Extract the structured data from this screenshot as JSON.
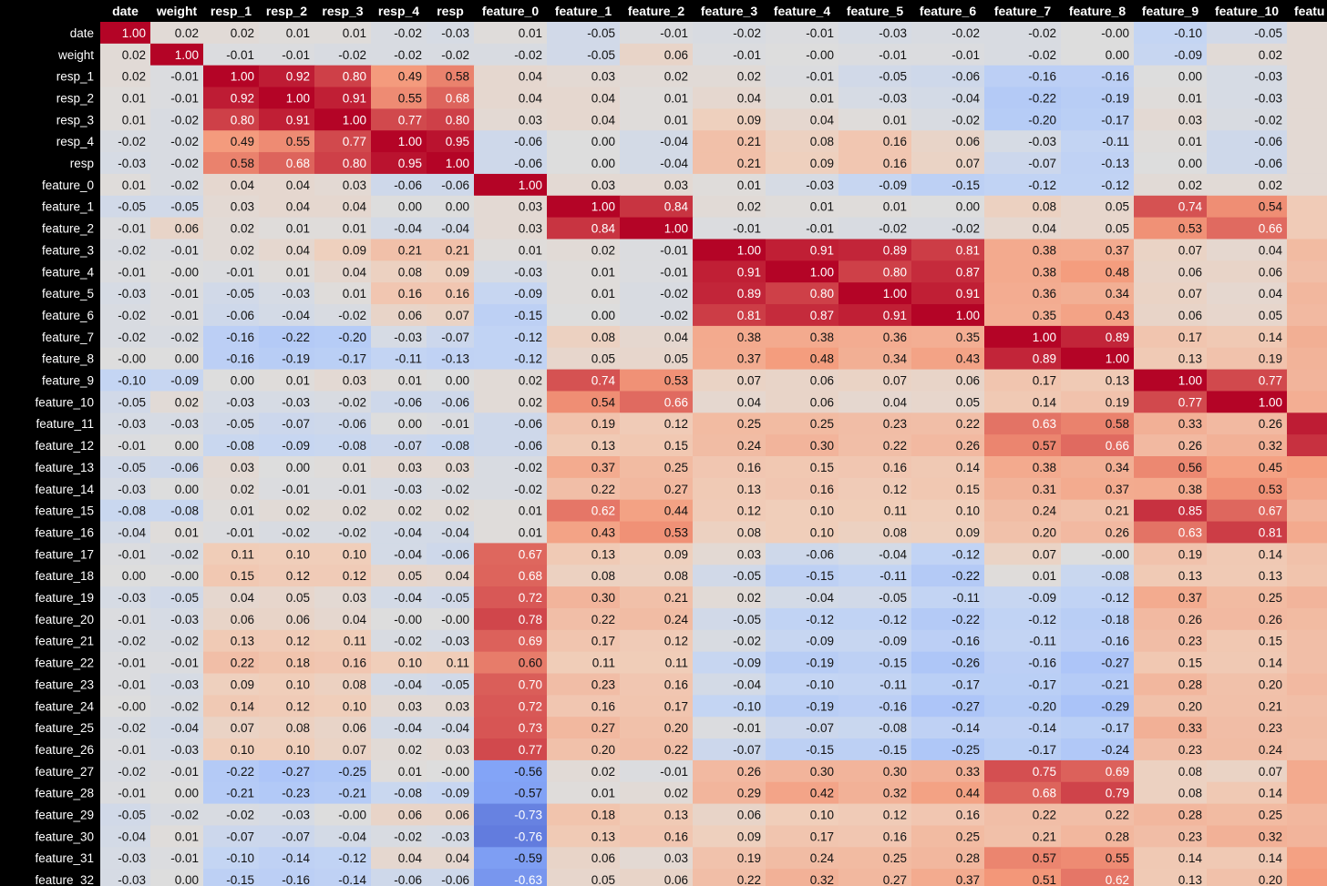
{
  "chart_data": {
    "type": "heatmap",
    "title": "",
    "colormap": "coolwarm",
    "value_range": [
      -1,
      1
    ],
    "columns": [
      "date",
      "weight",
      "resp_1",
      "resp_2",
      "resp_3",
      "resp_4",
      "resp",
      "feature_0",
      "feature_1",
      "feature_2",
      "feature_3",
      "feature_4",
      "feature_5",
      "feature_6",
      "feature_7",
      "feature_8",
      "feature_9",
      "feature_10",
      "featu"
    ],
    "rows": [
      "date",
      "weight",
      "resp_1",
      "resp_2",
      "resp_3",
      "resp_4",
      "resp",
      "feature_0",
      "feature_1",
      "feature_2",
      "feature_3",
      "feature_4",
      "feature_5",
      "feature_6",
      "feature_7",
      "feature_8",
      "feature_9",
      "feature_10",
      "feature_11",
      "feature_12",
      "feature_13",
      "feature_14",
      "feature_15",
      "feature_16",
      "feature_17",
      "feature_18",
      "feature_19",
      "feature_20",
      "feature_21",
      "feature_22",
      "feature_23",
      "feature_24",
      "feature_25",
      "feature_26",
      "feature_27",
      "feature_28",
      "feature_29",
      "feature_30",
      "feature_31",
      "feature_32"
    ],
    "values": [
      [
        "1.00",
        "0.02",
        "0.02",
        "0.01",
        "0.01",
        "-0.02",
        "-0.03",
        "0.01",
        "-0.05",
        "-0.01",
        "-0.02",
        "-0.01",
        "-0.03",
        "-0.02",
        "-0.02",
        "-0.00",
        "-0.10",
        "-0.05"
      ],
      [
        "0.02",
        "1.00",
        "-0.01",
        "-0.01",
        "-0.02",
        "-0.02",
        "-0.02",
        "-0.02",
        "-0.05",
        "0.06",
        "-0.01",
        "-0.00",
        "-0.01",
        "-0.01",
        "-0.02",
        "0.00",
        "-0.09",
        "0.02"
      ],
      [
        "0.02",
        "-0.01",
        "1.00",
        "0.92",
        "0.80",
        "0.49",
        "0.58",
        "0.04",
        "0.03",
        "0.02",
        "0.02",
        "-0.01",
        "-0.05",
        "-0.06",
        "-0.16",
        "-0.16",
        "0.00",
        "-0.03"
      ],
      [
        "0.01",
        "-0.01",
        "0.92",
        "1.00",
        "0.91",
        "0.55",
        "0.68",
        "0.04",
        "0.04",
        "0.01",
        "0.04",
        "0.01",
        "-0.03",
        "-0.04",
        "-0.22",
        "-0.19",
        "0.01",
        "-0.03"
      ],
      [
        "0.01",
        "-0.02",
        "0.80",
        "0.91",
        "1.00",
        "0.77",
        "0.80",
        "0.03",
        "0.04",
        "0.01",
        "0.09",
        "0.04",
        "0.01",
        "-0.02",
        "-0.20",
        "-0.17",
        "0.03",
        "-0.02"
      ],
      [
        "-0.02",
        "-0.02",
        "0.49",
        "0.55",
        "0.77",
        "1.00",
        "0.95",
        "-0.06",
        "0.00",
        "-0.04",
        "0.21",
        "0.08",
        "0.16",
        "0.06",
        "-0.03",
        "-0.11",
        "0.01",
        "-0.06"
      ],
      [
        "-0.03",
        "-0.02",
        "0.58",
        "0.68",
        "0.80",
        "0.95",
        "1.00",
        "-0.06",
        "0.00",
        "-0.04",
        "0.21",
        "0.09",
        "0.16",
        "0.07",
        "-0.07",
        "-0.13",
        "0.00",
        "-0.06"
      ],
      [
        "0.01",
        "-0.02",
        "0.04",
        "0.04",
        "0.03",
        "-0.06",
        "-0.06",
        "1.00",
        "0.03",
        "0.03",
        "0.01",
        "-0.03",
        "-0.09",
        "-0.15",
        "-0.12",
        "-0.12",
        "0.02",
        "0.02"
      ],
      [
        "-0.05",
        "-0.05",
        "0.03",
        "0.04",
        "0.04",
        "0.00",
        "0.00",
        "0.03",
        "1.00",
        "0.84",
        "0.02",
        "0.01",
        "0.01",
        "0.00",
        "0.08",
        "0.05",
        "0.74",
        "0.54"
      ],
      [
        "-0.01",
        "0.06",
        "0.02",
        "0.01",
        "0.01",
        "-0.04",
        "-0.04",
        "0.03",
        "0.84",
        "1.00",
        "-0.01",
        "-0.01",
        "-0.02",
        "-0.02",
        "0.04",
        "0.05",
        "0.53",
        "0.66"
      ],
      [
        "-0.02",
        "-0.01",
        "0.02",
        "0.04",
        "0.09",
        "0.21",
        "0.21",
        "0.01",
        "0.02",
        "-0.01",
        "1.00",
        "0.91",
        "0.89",
        "0.81",
        "0.38",
        "0.37",
        "0.07",
        "0.04"
      ],
      [
        "-0.01",
        "-0.00",
        "-0.01",
        "0.01",
        "0.04",
        "0.08",
        "0.09",
        "-0.03",
        "0.01",
        "-0.01",
        "0.91",
        "1.00",
        "0.80",
        "0.87",
        "0.38",
        "0.48",
        "0.06",
        "0.06"
      ],
      [
        "-0.03",
        "-0.01",
        "-0.05",
        "-0.03",
        "0.01",
        "0.16",
        "0.16",
        "-0.09",
        "0.01",
        "-0.02",
        "0.89",
        "0.80",
        "1.00",
        "0.91",
        "0.36",
        "0.34",
        "0.07",
        "0.04"
      ],
      [
        "-0.02",
        "-0.01",
        "-0.06",
        "-0.04",
        "-0.02",
        "0.06",
        "0.07",
        "-0.15",
        "0.00",
        "-0.02",
        "0.81",
        "0.87",
        "0.91",
        "1.00",
        "0.35",
        "0.43",
        "0.06",
        "0.05"
      ],
      [
        "-0.02",
        "-0.02",
        "-0.16",
        "-0.22",
        "-0.20",
        "-0.03",
        "-0.07",
        "-0.12",
        "0.08",
        "0.04",
        "0.38",
        "0.38",
        "0.36",
        "0.35",
        "1.00",
        "0.89",
        "0.17",
        "0.14"
      ],
      [
        "-0.00",
        "0.00",
        "-0.16",
        "-0.19",
        "-0.17",
        "-0.11",
        "-0.13",
        "-0.12",
        "0.05",
        "0.05",
        "0.37",
        "0.48",
        "0.34",
        "0.43",
        "0.89",
        "1.00",
        "0.13",
        "0.19"
      ],
      [
        "-0.10",
        "-0.09",
        "0.00",
        "0.01",
        "0.03",
        "0.01",
        "0.00",
        "0.02",
        "0.74",
        "0.53",
        "0.07",
        "0.06",
        "0.07",
        "0.06",
        "0.17",
        "0.13",
        "1.00",
        "0.77"
      ],
      [
        "-0.05",
        "0.02",
        "-0.03",
        "-0.03",
        "-0.02",
        "-0.06",
        "-0.06",
        "0.02",
        "0.54",
        "0.66",
        "0.04",
        "0.06",
        "0.04",
        "0.05",
        "0.14",
        "0.19",
        "0.77",
        "1.00"
      ],
      [
        "-0.03",
        "-0.03",
        "-0.05",
        "-0.07",
        "-0.06",
        "0.00",
        "-0.01",
        "-0.06",
        "0.19",
        "0.12",
        "0.25",
        "0.25",
        "0.23",
        "0.22",
        "0.63",
        "0.58",
        "0.33",
        "0.26"
      ],
      [
        "-0.01",
        "0.00",
        "-0.08",
        "-0.09",
        "-0.08",
        "-0.07",
        "-0.08",
        "-0.06",
        "0.13",
        "0.15",
        "0.24",
        "0.30",
        "0.22",
        "0.26",
        "0.57",
        "0.66",
        "0.26",
        "0.32"
      ],
      [
        "-0.05",
        "-0.06",
        "0.03",
        "0.00",
        "0.01",
        "0.03",
        "0.03",
        "-0.02",
        "0.37",
        "0.25",
        "0.16",
        "0.15",
        "0.16",
        "0.14",
        "0.38",
        "0.34",
        "0.56",
        "0.45"
      ],
      [
        "-0.03",
        "0.00",
        "0.02",
        "-0.01",
        "-0.01",
        "-0.03",
        "-0.02",
        "-0.02",
        "0.22",
        "0.27",
        "0.13",
        "0.16",
        "0.12",
        "0.15",
        "0.31",
        "0.37",
        "0.38",
        "0.53"
      ],
      [
        "-0.08",
        "-0.08",
        "0.01",
        "0.02",
        "0.02",
        "0.02",
        "0.02",
        "0.01",
        "0.62",
        "0.44",
        "0.12",
        "0.10",
        "0.11",
        "0.10",
        "0.24",
        "0.21",
        "0.85",
        "0.67"
      ],
      [
        "-0.04",
        "0.01",
        "-0.01",
        "-0.02",
        "-0.02",
        "-0.04",
        "-0.04",
        "0.01",
        "0.43",
        "0.53",
        "0.08",
        "0.10",
        "0.08",
        "0.09",
        "0.20",
        "0.26",
        "0.63",
        "0.81"
      ],
      [
        "-0.01",
        "-0.02",
        "0.11",
        "0.10",
        "0.10",
        "-0.04",
        "-0.06",
        "0.67",
        "0.13",
        "0.09",
        "0.03",
        "-0.06",
        "-0.04",
        "-0.12",
        "0.07",
        "-0.00",
        "0.19",
        "0.14"
      ],
      [
        "0.00",
        "-0.00",
        "0.15",
        "0.12",
        "0.12",
        "0.05",
        "0.04",
        "0.68",
        "0.08",
        "0.08",
        "-0.05",
        "-0.15",
        "-0.11",
        "-0.22",
        "0.01",
        "-0.08",
        "0.13",
        "0.13"
      ],
      [
        "-0.03",
        "-0.05",
        "0.04",
        "0.05",
        "0.03",
        "-0.04",
        "-0.05",
        "0.72",
        "0.30",
        "0.21",
        "0.02",
        "-0.04",
        "-0.05",
        "-0.11",
        "-0.09",
        "-0.12",
        "0.37",
        "0.25"
      ],
      [
        "-0.01",
        "-0.03",
        "0.06",
        "0.06",
        "0.04",
        "-0.00",
        "-0.00",
        "0.78",
        "0.22",
        "0.24",
        "-0.05",
        "-0.12",
        "-0.12",
        "-0.22",
        "-0.12",
        "-0.18",
        "0.26",
        "0.26"
      ],
      [
        "-0.02",
        "-0.02",
        "0.13",
        "0.12",
        "0.11",
        "-0.02",
        "-0.03",
        "0.69",
        "0.17",
        "0.12",
        "-0.02",
        "-0.09",
        "-0.09",
        "-0.16",
        "-0.11",
        "-0.16",
        "0.23",
        "0.15"
      ],
      [
        "-0.01",
        "-0.01",
        "0.22",
        "0.18",
        "0.16",
        "0.10",
        "0.11",
        "0.60",
        "0.11",
        "0.11",
        "-0.09",
        "-0.19",
        "-0.15",
        "-0.26",
        "-0.16",
        "-0.27",
        "0.15",
        "0.14"
      ],
      [
        "-0.01",
        "-0.03",
        "0.09",
        "0.10",
        "0.08",
        "-0.04",
        "-0.05",
        "0.70",
        "0.23",
        "0.16",
        "-0.04",
        "-0.10",
        "-0.11",
        "-0.17",
        "-0.17",
        "-0.21",
        "0.28",
        "0.20"
      ],
      [
        "-0.00",
        "-0.02",
        "0.14",
        "0.12",
        "0.10",
        "0.03",
        "0.03",
        "0.72",
        "0.16",
        "0.17",
        "-0.10",
        "-0.19",
        "-0.16",
        "-0.27",
        "-0.20",
        "-0.29",
        "0.20",
        "0.21"
      ],
      [
        "-0.02",
        "-0.04",
        "0.07",
        "0.08",
        "0.06",
        "-0.04",
        "-0.04",
        "0.73",
        "0.27",
        "0.20",
        "-0.01",
        "-0.07",
        "-0.08",
        "-0.14",
        "-0.14",
        "-0.17",
        "0.33",
        "0.23"
      ],
      [
        "-0.01",
        "-0.03",
        "0.10",
        "0.10",
        "0.07",
        "0.02",
        "0.03",
        "0.77",
        "0.20",
        "0.22",
        "-0.07",
        "-0.15",
        "-0.15",
        "-0.25",
        "-0.17",
        "-0.24",
        "0.23",
        "0.24"
      ],
      [
        "-0.02",
        "-0.01",
        "-0.22",
        "-0.27",
        "-0.25",
        "0.01",
        "-0.00",
        "-0.56",
        "0.02",
        "-0.01",
        "0.26",
        "0.30",
        "0.30",
        "0.33",
        "0.75",
        "0.69",
        "0.08",
        "0.07"
      ],
      [
        "-0.01",
        "0.00",
        "-0.21",
        "-0.23",
        "-0.21",
        "-0.08",
        "-0.09",
        "-0.57",
        "0.01",
        "0.02",
        "0.29",
        "0.42",
        "0.32",
        "0.44",
        "0.68",
        "0.79",
        "0.08",
        "0.14"
      ],
      [
        "-0.05",
        "-0.02",
        "-0.02",
        "-0.03",
        "-0.00",
        "0.06",
        "0.06",
        "-0.73",
        "0.18",
        "0.13",
        "0.06",
        "0.10",
        "0.12",
        "0.16",
        "0.22",
        "0.22",
        "0.28",
        "0.25"
      ],
      [
        "-0.04",
        "0.01",
        "-0.07",
        "-0.07",
        "-0.04",
        "-0.02",
        "-0.03",
        "-0.76",
        "0.13",
        "0.16",
        "0.09",
        "0.17",
        "0.16",
        "0.25",
        "0.21",
        "0.28",
        "0.23",
        "0.32"
      ],
      [
        "-0.03",
        "-0.01",
        "-0.10",
        "-0.14",
        "-0.12",
        "0.04",
        "0.04",
        "-0.59",
        "0.06",
        "0.03",
        "0.19",
        "0.24",
        "0.25",
        "0.28",
        "0.57",
        "0.55",
        "0.14",
        "0.14"
      ],
      [
        "-0.03",
        "0.00",
        "-0.15",
        "-0.16",
        "-0.14",
        "-0.06",
        "-0.06",
        "-0.63",
        "0.05",
        "0.06",
        "0.22",
        "0.32",
        "0.27",
        "0.37",
        "0.51",
        "0.62",
        "0.13",
        "0.20"
      ]
    ],
    "partial_column_values": [
      null,
      null,
      null,
      null,
      null,
      null,
      null,
      null,
      0.12,
      0.12,
      0.25,
      0.22,
      0.28,
      0.26,
      0.34,
      0.31,
      0.3,
      0.35,
      0.92,
      0.85,
      0.48,
      0.4,
      0.3,
      0.38,
      0.2,
      0.18,
      0.3,
      0.25,
      0.22,
      0.22,
      0.26,
      0.22,
      0.24,
      0.22,
      0.38,
      0.38,
      0.28,
      0.3,
      0.45,
      0.5
    ]
  }
}
